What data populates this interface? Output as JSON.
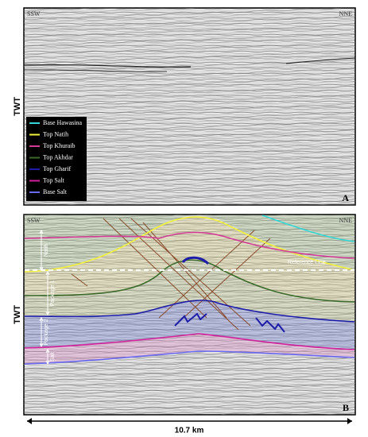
{
  "panel_a": {
    "left_label": "SSW",
    "right_label": "NNE",
    "axis_label": "TWT",
    "panel_label": "A",
    "legend": [
      {
        "label": "Base Hawasina",
        "color": "#33d6d6"
      },
      {
        "label": "Top Natih",
        "color": "#f2f23a"
      },
      {
        "label": "Top Khuraib",
        "color": "#d23c96"
      },
      {
        "label": "Top Akhdar",
        "color": "#3a6a2a"
      },
      {
        "label": "Top Gharif",
        "color": "#1c1ca8"
      },
      {
        "label": "Top Salt",
        "color": "#d0209a"
      },
      {
        "label": "Base Salt",
        "color": "#6a6af0"
      }
    ]
  },
  "panel_b": {
    "left_label": "SSW",
    "right_label": "NNE",
    "axis_label": "TWT",
    "panel_label": "B",
    "reference_line": "Reference Line",
    "intervals": [
      "Natih",
      "Package 1",
      "Package 2",
      "Salt"
    ]
  },
  "scale_bar": {
    "label": "10.7 km"
  }
}
